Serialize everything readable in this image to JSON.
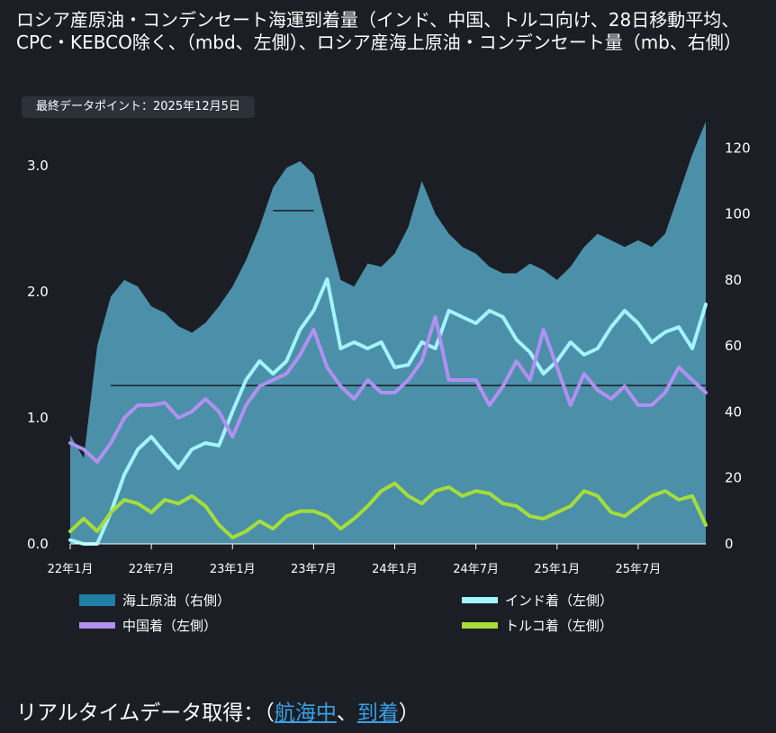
{
  "title": "ロシア産原油・コンデンセート海運到着量（インド、中国、トルコ向け、28日移動平均、CPC・KEBCO除く、（mbd、左側）、ロシア産海上原油・コンデンセート量（mb、右側）",
  "badge": "最終データポイント：2025年12月5日",
  "footer": {
    "prefix": "リアルタイムデータ取得：（",
    "link1": "航海中",
    "sep": "、",
    "link2": "到着",
    "suffix": "）"
  },
  "colors": {
    "background": "#1b1e25",
    "seaborne": "#4b90a8",
    "seaborne_legend": "#1f7fa6",
    "india": "#a3f4ff",
    "china": "#b190f2",
    "turkey": "#a6dc3b",
    "ref": "#1b1e25"
  },
  "chart_data": {
    "type": "area+line",
    "x": [
      "2022-01",
      "2022-02",
      "2022-03",
      "2022-04",
      "2022-05",
      "2022-06",
      "2022-07",
      "2022-08",
      "2022-09",
      "2022-10",
      "2022-11",
      "2022-12",
      "2023-01",
      "2023-02",
      "2023-03",
      "2023-04",
      "2023-05",
      "2023-06",
      "2023-07",
      "2023-08",
      "2023-09",
      "2023-10",
      "2023-11",
      "2023-12",
      "2024-01",
      "2024-02",
      "2024-03",
      "2024-04",
      "2024-05",
      "2024-06",
      "2024-07",
      "2024-08",
      "2024-09",
      "2024-10",
      "2024-11",
      "2024-12",
      "2025-01",
      "2025-02",
      "2025-03",
      "2025-04",
      "2025-05",
      "2025-06",
      "2025-07",
      "2025-08",
      "2025-09",
      "2025-10",
      "2025-11",
      "2025-12"
    ],
    "xticks": [
      {
        "label": "22年1月",
        "index": 0
      },
      {
        "label": "22年7月",
        "index": 6
      },
      {
        "label": "23年1月",
        "index": 12
      },
      {
        "label": "23年7月",
        "index": 18
      },
      {
        "label": "24年1月",
        "index": 24
      },
      {
        "label": "24年7月",
        "index": 30
      },
      {
        "label": "25年1月",
        "index": 36
      },
      {
        "label": "25年7月",
        "index": 42
      }
    ],
    "y_left": {
      "label": "mbd",
      "ticks": [
        "0.0",
        "1.0",
        "2.0",
        "3.0"
      ],
      "ylim": [
        0,
        3.35
      ]
    },
    "y_right": {
      "label": "mb",
      "ticks": [
        "0",
        "20",
        "40",
        "60",
        "80",
        "100",
        "120"
      ],
      "ylim": [
        0,
        128
      ]
    },
    "reference_lines_right": [
      {
        "value": 48,
        "from": 3,
        "to": 47
      },
      {
        "value": 101,
        "from": 15,
        "to": 18
      }
    ],
    "series": [
      {
        "name": "海上原油（右側）",
        "axis": "right",
        "kind": "area",
        "values": [
          33,
          26,
          60,
          75,
          80,
          78,
          72,
          70,
          66,
          64,
          67,
          72,
          78,
          86,
          96,
          108,
          114,
          116,
          112,
          96,
          80,
          78,
          85,
          84,
          88,
          96,
          110,
          100,
          94,
          90,
          88,
          84,
          82,
          82,
          85,
          83,
          80,
          84,
          90,
          94,
          92,
          90,
          92,
          90,
          94,
          106,
          118,
          128
        ]
      },
      {
        "name": "インド着（左側）",
        "axis": "left",
        "kind": "line",
        "values": [
          0.03,
          0.0,
          0.0,
          0.25,
          0.55,
          0.75,
          0.85,
          0.72,
          0.6,
          0.75,
          0.8,
          0.78,
          1.05,
          1.3,
          1.45,
          1.35,
          1.45,
          1.7,
          1.85,
          2.1,
          1.55,
          1.6,
          1.55,
          1.6,
          1.4,
          1.42,
          1.6,
          1.55,
          1.85,
          1.8,
          1.75,
          1.85,
          1.8,
          1.62,
          1.52,
          1.35,
          1.45,
          1.6,
          1.5,
          1.55,
          1.72,
          1.85,
          1.75,
          1.6,
          1.68,
          1.72,
          1.55,
          1.9
        ]
      },
      {
        "name": "中国着（左側）",
        "axis": "left",
        "kind": "line",
        "values": [
          0.8,
          0.75,
          0.65,
          0.8,
          1.0,
          1.1,
          1.1,
          1.12,
          1.0,
          1.05,
          1.15,
          1.05,
          0.85,
          1.1,
          1.25,
          1.3,
          1.35,
          1.5,
          1.7,
          1.4,
          1.25,
          1.15,
          1.3,
          1.2,
          1.2,
          1.3,
          1.45,
          1.8,
          1.3,
          1.3,
          1.3,
          1.1,
          1.25,
          1.45,
          1.3,
          1.7,
          1.4,
          1.1,
          1.35,
          1.22,
          1.15,
          1.25,
          1.1,
          1.1,
          1.2,
          1.4,
          1.3,
          1.2
        ]
      },
      {
        "name": "トルコ着（左側）",
        "axis": "left",
        "kind": "line",
        "values": [
          0.1,
          0.2,
          0.1,
          0.25,
          0.35,
          0.32,
          0.25,
          0.35,
          0.32,
          0.38,
          0.3,
          0.15,
          0.05,
          0.1,
          0.18,
          0.12,
          0.22,
          0.26,
          0.26,
          0.22,
          0.12,
          0.2,
          0.3,
          0.42,
          0.48,
          0.38,
          0.32,
          0.42,
          0.45,
          0.38,
          0.42,
          0.4,
          0.32,
          0.3,
          0.22,
          0.2,
          0.25,
          0.3,
          0.42,
          0.38,
          0.25,
          0.22,
          0.3,
          0.38,
          0.42,
          0.35,
          0.38,
          0.15
        ]
      }
    ]
  }
}
